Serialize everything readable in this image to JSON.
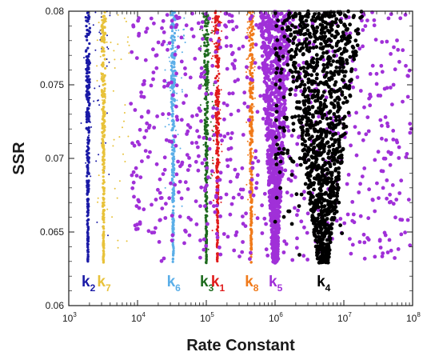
{
  "chart_data": {
    "type": "scatter",
    "title": "",
    "xlabel": "Rate Constant",
    "ylabel": "SSR",
    "xscale": "log",
    "xlim": [
      1000,
      100000000
    ],
    "ylim": [
      0.06,
      0.08
    ],
    "grid": false,
    "x_ticks": [
      {
        "base": "10",
        "exp": "3"
      },
      {
        "base": "10",
        "exp": "4"
      },
      {
        "base": "10",
        "exp": "5"
      },
      {
        "base": "10",
        "exp": "6"
      },
      {
        "base": "10",
        "exp": "7"
      },
      {
        "base": "10",
        "exp": "8"
      }
    ],
    "y_ticks": [
      "0.06",
      "0.065",
      "0.07",
      "0.075",
      "0.08"
    ],
    "series": [
      {
        "name": "k",
        "sub": "2",
        "color": "#1a1aa6",
        "x_center": 1900,
        "x_spread_decades": 0.03,
        "ssr_min": 0.0629,
        "scatter_x": [
          1500,
          4000
        ]
      },
      {
        "name": "k",
        "sub": "7",
        "color": "#e8c23a",
        "x_center": 3200,
        "x_spread_decades": 0.03,
        "ssr_min": 0.0629,
        "scatter_x": [
          2500,
          8000
        ]
      },
      {
        "name": "k",
        "sub": "6",
        "color": "#5aaee8",
        "x_center": 33000,
        "x_spread_decades": 0.03,
        "ssr_min": 0.0629,
        "scatter_x": [
          25000,
          50000
        ]
      },
      {
        "name": "k",
        "sub": "3",
        "color": "#1e6b1e",
        "x_center": 100000,
        "x_spread_decades": 0.03,
        "ssr_min": 0.0629,
        "scatter_x": [
          80000,
          130000
        ]
      },
      {
        "name": "k",
        "sub": "1",
        "color": "#e01b1b",
        "x_center": 145000,
        "x_spread_decades": 0.03,
        "ssr_min": 0.0629,
        "scatter_x": [
          120000,
          170000
        ]
      },
      {
        "name": "k",
        "sub": "8",
        "color": "#f07a1a",
        "x_center": 450000,
        "x_spread_decades": 0.03,
        "ssr_min": 0.0629,
        "scatter_x": [
          380000,
          520000
        ]
      },
      {
        "name": "k",
        "sub": "5",
        "color": "#a030d8",
        "x_center": 1000000,
        "x_spread_decades": 0.2,
        "ssr_min": 0.0629,
        "scatter_x": [
          8000,
          100000000
        ]
      },
      {
        "name": "k",
        "sub": "4",
        "color": "#000000",
        "x_center": 5000000,
        "x_spread_decades": 0.5,
        "ssr_min": 0.0629,
        "scatter_x": [
          1000000,
          10000000
        ]
      }
    ]
  }
}
